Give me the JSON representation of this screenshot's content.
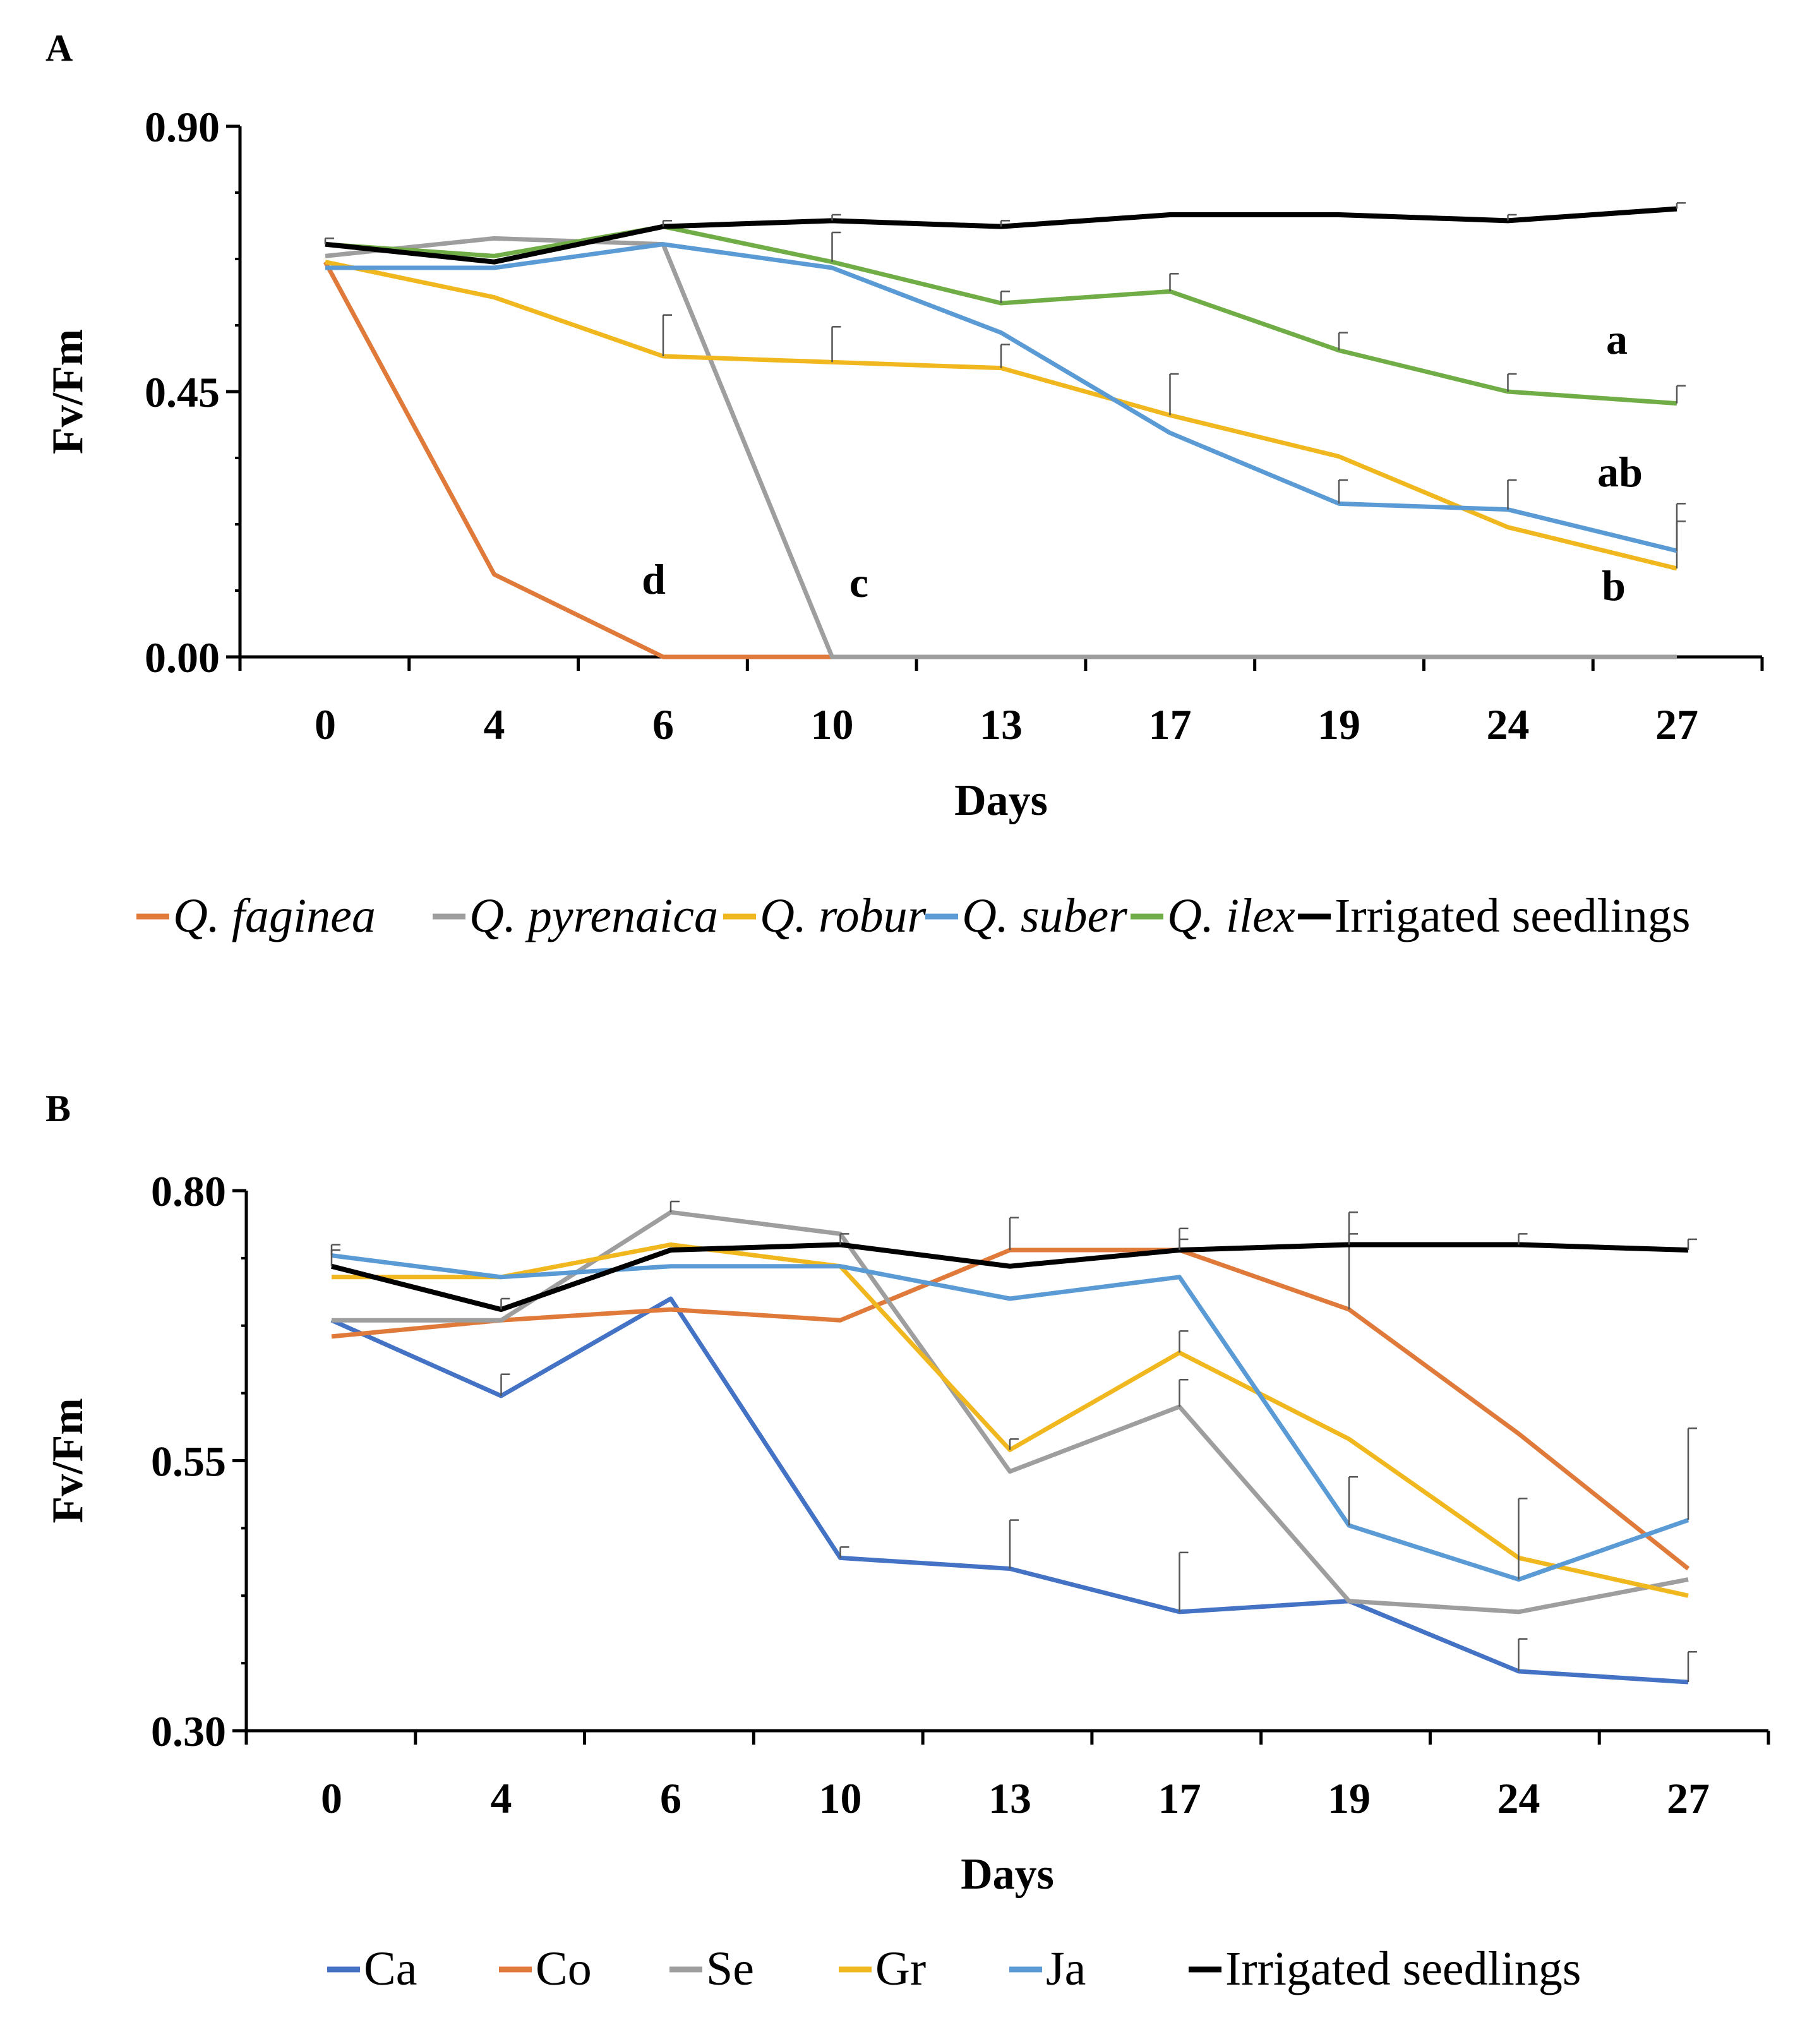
{
  "chart_data": [
    {
      "panel": "A",
      "type": "line",
      "ylabel": "Fv/Fm",
      "xlabel": "Days",
      "categories": [
        "0",
        "4",
        "6",
        "10",
        "13",
        "17",
        "19",
        "24",
        "27"
      ],
      "ylim": [
        0,
        0.9
      ],
      "yticks": [
        "0.00",
        "0.45",
        "0.90"
      ],
      "series": [
        {
          "name": "Q. faginea",
          "italic": true,
          "color": "#E07A3B",
          "values": [
            0.67,
            0.14,
            0.0,
            0.0,
            null,
            null,
            null,
            null,
            null
          ],
          "errors": [
            0,
            0,
            0,
            0,
            null,
            null,
            null,
            null,
            null
          ]
        },
        {
          "name": "Q. pyrenaica",
          "italic": true,
          "color": "#9E9E9E",
          "values": [
            0.68,
            0.71,
            0.7,
            0.0,
            0.0,
            0.0,
            0.0,
            0.0,
            0.0
          ],
          "errors": [
            0,
            0,
            0,
            0,
            0,
            0,
            0,
            0,
            0
          ]
        },
        {
          "name": "Q. robur",
          "italic": true,
          "color": "#F0B81E",
          "values": [
            0.67,
            0.61,
            0.51,
            0.5,
            0.49,
            0.41,
            0.34,
            0.22,
            0.15
          ],
          "errors": [
            0,
            0,
            0.07,
            0.06,
            0.04,
            0.07,
            0,
            0,
            0.08
          ]
        },
        {
          "name": "Q. suber",
          "italic": true,
          "color": "#5B9BD5",
          "values": [
            0.66,
            0.66,
            0.7,
            0.66,
            0.55,
            0.38,
            0.26,
            0.25,
            0.18
          ],
          "errors": [
            0,
            0,
            0,
            0,
            0,
            0,
            0.04,
            0.05,
            0.08
          ]
        },
        {
          "name": "Q. ilex",
          "italic": true,
          "color": "#70AD47",
          "values": [
            0.7,
            0.68,
            0.73,
            0.67,
            0.6,
            0.62,
            0.52,
            0.45,
            0.43
          ],
          "errors": [
            0,
            0,
            0,
            0.05,
            0.02,
            0.03,
            0.03,
            0.03,
            0.03
          ]
        },
        {
          "name": "Irrigated seedlings",
          "italic": false,
          "color": "#000000",
          "values": [
            0.7,
            0.67,
            0.73,
            0.74,
            0.73,
            0.75,
            0.75,
            0.74,
            0.76
          ],
          "errors": [
            0.01,
            0,
            0.01,
            0.01,
            0.01,
            0,
            0,
            0.01,
            0.01
          ]
        }
      ],
      "annotations": [
        {
          "text": "a",
          "near_series": "Q. ilex"
        },
        {
          "text": "ab",
          "near_series": "Q. suber"
        },
        {
          "text": "b",
          "near_series": "Q. robur"
        },
        {
          "text": "c",
          "near_series": "Q. pyrenaica"
        },
        {
          "text": "d",
          "near_series": "Q. faginea"
        }
      ]
    },
    {
      "panel": "B",
      "type": "line",
      "ylabel": "Fv/Fm",
      "xlabel": "Days",
      "categories": [
        "0",
        "4",
        "6",
        "10",
        "13",
        "17",
        "19",
        "24",
        "27"
      ],
      "ylim": [
        0.3,
        0.8
      ],
      "yticks": [
        "0.30",
        "0.55",
        "0.80"
      ],
      "series": [
        {
          "name": "Ca",
          "italic": false,
          "color": "#4472C4",
          "values": [
            0.68,
            0.61,
            0.7,
            0.46,
            0.45,
            0.41,
            0.42,
            0.355,
            0.345
          ],
          "errors": [
            0,
            0.02,
            0,
            0.01,
            0.045,
            0.055,
            0,
            0.03,
            0.028
          ]
        },
        {
          "name": "Co",
          "italic": false,
          "color": "#E07A3B",
          "values": [
            0.665,
            0.68,
            0.69,
            0.68,
            0.745,
            0.745,
            0.69,
            0.575,
            0.45
          ],
          "errors": [
            0,
            0,
            0,
            0,
            0.03,
            0.02,
            0.09,
            0,
            0
          ]
        },
        {
          "name": "Se",
          "italic": false,
          "color": "#9E9E9E",
          "values": [
            0.68,
            0.68,
            0.78,
            0.76,
            0.54,
            0.6,
            0.42,
            0.41,
            0.44
          ],
          "errors": [
            0,
            0,
            0.01,
            0,
            0,
            0.025,
            0,
            0,
            0
          ]
        },
        {
          "name": "Gr",
          "italic": false,
          "color": "#F0B81E",
          "values": [
            0.72,
            0.72,
            0.75,
            0.73,
            0.56,
            0.65,
            0.57,
            0.46,
            0.425
          ],
          "errors": [
            0,
            0,
            0,
            0,
            0.01,
            0.02,
            0,
            0,
            0
          ]
        },
        {
          "name": "Ja",
          "italic": false,
          "color": "#5B9BD5",
          "values": [
            0.74,
            0.72,
            0.73,
            0.73,
            0.7,
            0.72,
            0.49,
            0.44,
            0.495
          ],
          "errors": [
            0.01,
            0,
            0,
            0,
            0,
            0,
            0.045,
            0.075,
            0.085
          ]
        },
        {
          "name": "Irrigated seedlings",
          "italic": false,
          "color": "#000000",
          "values": [
            0.73,
            0.69,
            0.745,
            0.75,
            0.73,
            0.745,
            0.75,
            0.75,
            0.745
          ],
          "errors": [
            0.015,
            0.01,
            0,
            0.01,
            0,
            0.01,
            0.01,
            0.01,
            0.01
          ]
        }
      ]
    }
  ]
}
